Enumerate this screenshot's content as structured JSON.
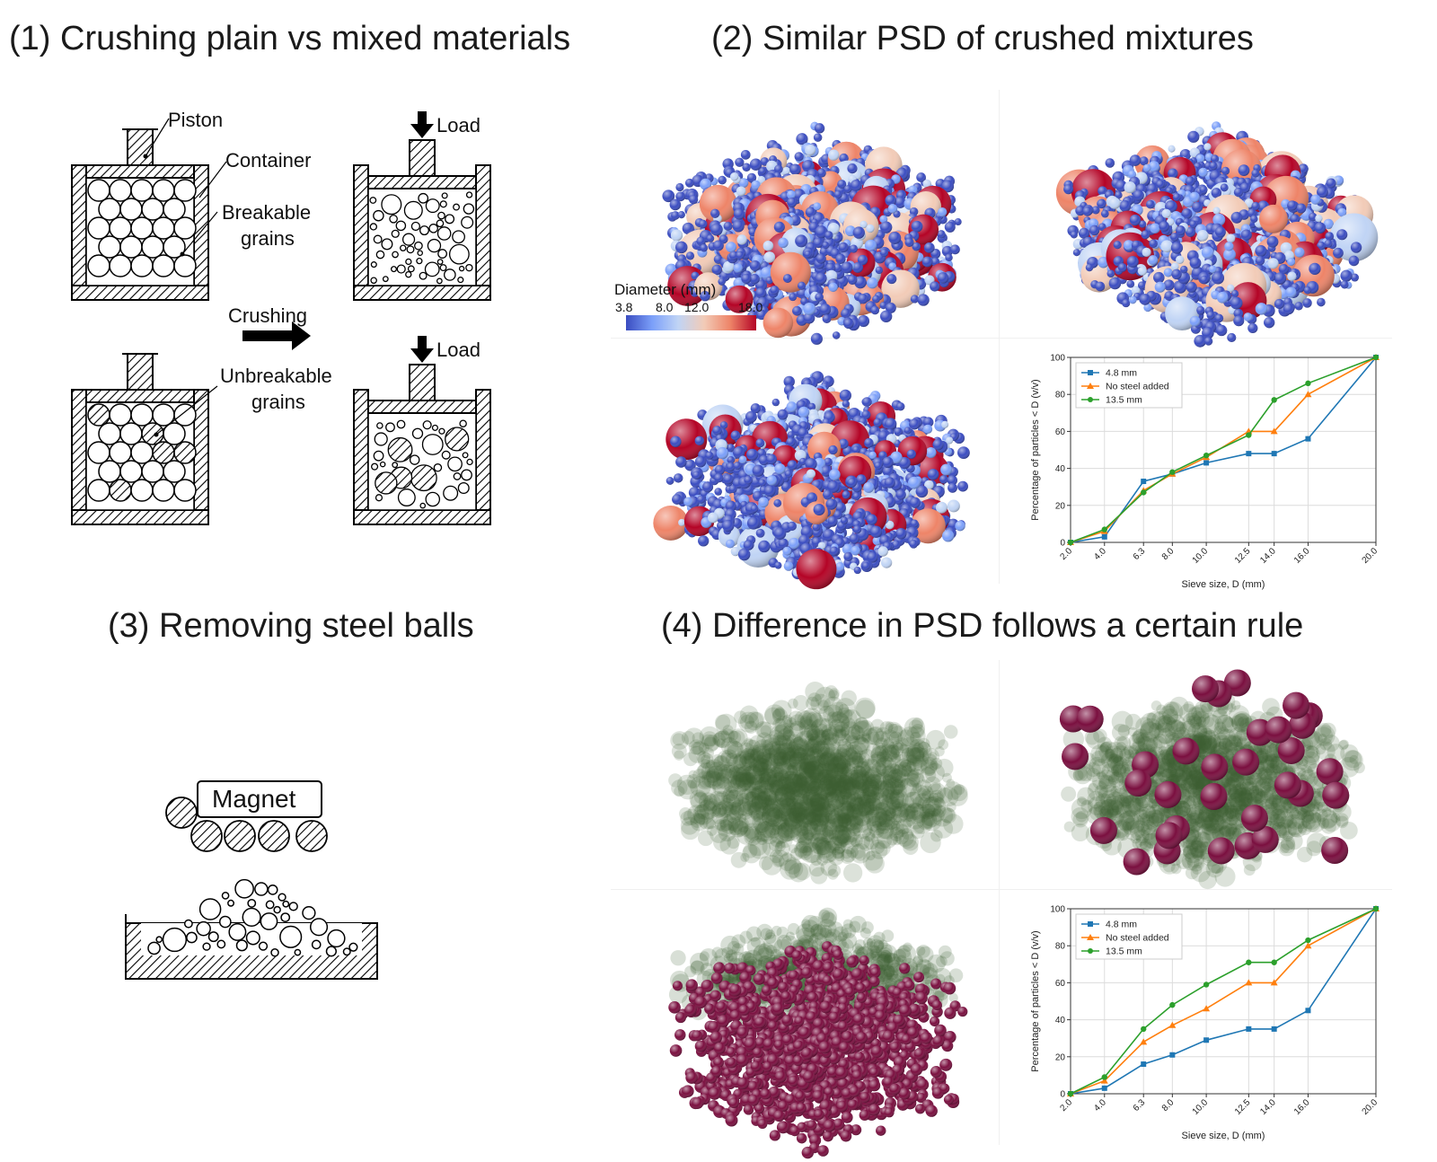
{
  "headings": {
    "h1": "(1) Crushing plain vs mixed materials",
    "h2": "(2) Similar PSD of crushed mixtures",
    "h3": "(3) Removing steel balls",
    "h4": "(4) Difference in PSD follows a certain rule"
  },
  "schematic": {
    "piston": "Piston",
    "container": "Container",
    "breakable_1": "Breakable",
    "breakable_2": "grains",
    "crushing": "Crushing",
    "unbreakable_1": "Unbreakable",
    "unbreakable_2": "grains",
    "load_top": "Load",
    "load_bottom": "Load",
    "magnet": "Magnet"
  },
  "colorbar": {
    "title": "Diameter (mm)",
    "ticks": [
      "3.8",
      "8.0",
      "12.0",
      "18.0"
    ],
    "colors": [
      "#3a4cc0",
      "#7b9ff9",
      "#c0d4f5",
      "#f2cbb7",
      "#ee8468",
      "#b40426"
    ]
  },
  "colors": {
    "psd_blue": "#1f77b4",
    "psd_orange": "#ff7f0e",
    "psd_green": "#2ca02c",
    "grain_green": "#3d5f34",
    "steel_maroon": "#7a0f3f"
  },
  "chart_data": [
    {
      "type": "line",
      "x_tick_labels": [
        "2.0",
        "4.0",
        "6.3",
        "8.0",
        "10.0",
        "12.5",
        "14.0",
        "16.0",
        "20.0"
      ],
      "x": [
        2.0,
        4.0,
        6.3,
        8.0,
        10.0,
        12.5,
        14.0,
        16.0,
        20.0
      ],
      "xlabel": "Sieve size, D (mm)",
      "ylabel": "Percentage of particles < D (v/v)",
      "ylim": [
        0,
        100
      ],
      "y_ticks": [
        "0",
        "20",
        "40",
        "60",
        "80",
        "100"
      ],
      "grid": true,
      "legend_position": "top-left",
      "series": [
        {
          "name": "4.8 mm",
          "marker": "square",
          "color": "#1f77b4",
          "values": [
            0,
            3,
            33,
            37,
            43,
            48,
            48,
            56,
            100
          ]
        },
        {
          "name": "No steel added",
          "marker": "triangle",
          "color": "#ff7f0e",
          "values": [
            0,
            6,
            28,
            37,
            46,
            60,
            60,
            80,
            100
          ]
        },
        {
          "name": "13.5 mm",
          "marker": "circle",
          "color": "#2ca02c",
          "values": [
            0,
            7,
            27,
            38,
            47,
            58,
            77,
            86,
            100
          ]
        }
      ]
    },
    {
      "type": "line",
      "x_tick_labels": [
        "2.0",
        "4.0",
        "6.3",
        "8.0",
        "10.0",
        "12.5",
        "14.0",
        "16.0",
        "20.0"
      ],
      "x": [
        2.0,
        4.0,
        6.3,
        8.0,
        10.0,
        12.5,
        14.0,
        16.0,
        20.0
      ],
      "xlabel": "Sieve size, D (mm)",
      "ylabel": "Percentage of particles < D (v/v)",
      "ylim": [
        0,
        100
      ],
      "y_ticks": [
        "0",
        "20",
        "40",
        "60",
        "80",
        "100"
      ],
      "grid": true,
      "legend_position": "top-left",
      "series": [
        {
          "name": "4.8 mm",
          "marker": "square",
          "color": "#1f77b4",
          "values": [
            0,
            3,
            16,
            21,
            29,
            35,
            35,
            45,
            100
          ]
        },
        {
          "name": "No steel added",
          "marker": "triangle",
          "color": "#ff7f0e",
          "values": [
            0,
            7,
            28,
            37,
            46,
            60,
            60,
            80,
            100
          ]
        },
        {
          "name": "13.5 mm",
          "marker": "circle",
          "color": "#2ca02c",
          "values": [
            0,
            9,
            35,
            48,
            59,
            71,
            71,
            83,
            100
          ]
        }
      ]
    }
  ]
}
